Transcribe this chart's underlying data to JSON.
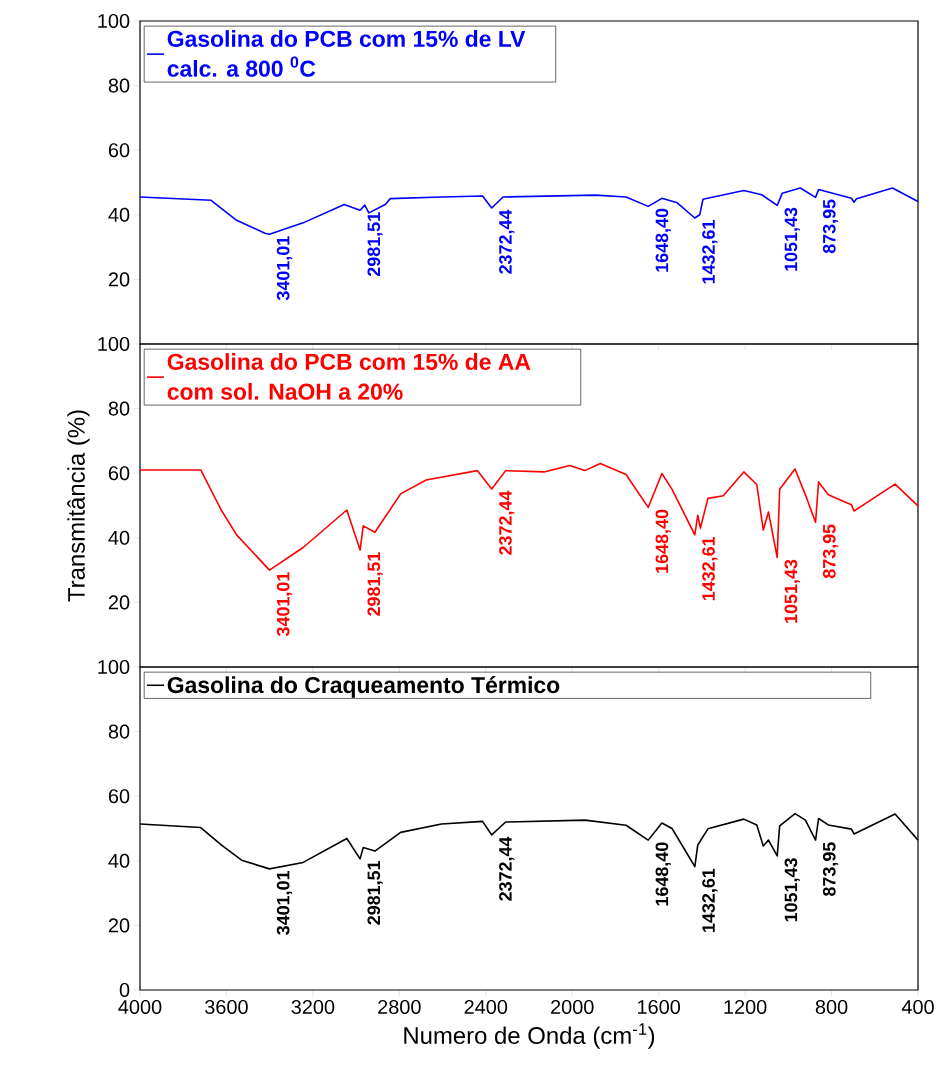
{
  "chart_data": [
    {
      "type": "line",
      "xlim": [
        4000,
        400
      ],
      "xticks": [
        4000,
        3600,
        3200,
        2800,
        2400,
        2000,
        1600,
        1200,
        800,
        400
      ],
      "ylim": [
        0,
        100
      ],
      "yticks": [
        20,
        40,
        60,
        80,
        100
      ],
      "tick_labels": "y",
      "legend": "top left",
      "marker": "none",
      "line_style": "solid",
      "x": [
        4000,
        3671,
        3553,
        3422,
        3401.01,
        3245,
        3055,
        2981.51,
        2960,
        2941,
        2865,
        2842,
        2605,
        2415,
        2372.44,
        2320,
        1893,
        1751,
        1648.4,
        1585,
        1514,
        1432.61,
        1410,
        1395,
        1206,
        1123,
        1051.43,
        1028,
        945,
        873.95,
        860,
        708,
        696,
        684,
        518,
        400
      ],
      "series": [
        {
          "name": "Gasolina do PCB com 15% de LV calc. a 800 $^{0}$C",
          "color": "#0000ff",
          "values": [
            45.5,
            44.5,
            38.3,
            34.3,
            34.0,
            37.5,
            43.2,
            41.4,
            43,
            40.6,
            43.2,
            45,
            45.5,
            45.8,
            42.1,
            45.5,
            46.1,
            45.5,
            42.6,
            45.1,
            43.7,
            39,
            40,
            44.8,
            47.5,
            46.2,
            42.9,
            46.7,
            48.3,
            45.4,
            47.8,
            45.1,
            43.9,
            45,
            48.3,
            44.1
          ]
        }
      ],
      "annotations": [
        {
          "text": "3401,01",
          "x": 3401.01,
          "y": 34.0
        },
        {
          "text": "2981,51",
          "x": 2981.51,
          "y": 41.4
        },
        {
          "text": "2372,44",
          "x": 2372.44,
          "y": 42.1
        },
        {
          "text": "1648,40",
          "x": 1648.4,
          "y": 42.6
        },
        {
          "text": "1432,61",
          "x": 1432.61,
          "y": 39
        },
        {
          "text": "1051,43",
          "x": 1051.43,
          "y": 42.9
        },
        {
          "text": "873,95",
          "x": 873.95,
          "y": 45.4
        }
      ]
    },
    {
      "type": "line",
      "xlim": [
        4000,
        400
      ],
      "xticks": [
        4000,
        3600,
        3200,
        2800,
        2400,
        2000,
        1600,
        1200,
        800,
        400
      ],
      "ylim": [
        0,
        100
      ],
      "yticks": [
        20,
        40,
        60,
        80,
        100
      ],
      "tick_labels": "y",
      "legend": "top left",
      "marker": "none",
      "line_style": "solid",
      "ylabel": "Transmitância (%)",
      "x": [
        4000,
        3719,
        3624,
        3553,
        3401.01,
        3245,
        3043,
        2981.51,
        2967,
        2913,
        2794,
        2676,
        2439,
        2372.44,
        2308,
        2130,
        2012,
        1941,
        1870,
        1751,
        1648.4,
        1585,
        1538,
        1432.61,
        1419,
        1407,
        1372,
        1301,
        1206,
        1146,
        1116,
        1092,
        1051.43,
        1040,
        969,
        921,
        873.95,
        860,
        815,
        708,
        696,
        506,
        400
      ],
      "series": [
        {
          "name": "Gasolina do PCB com 15% de AA com sol. NaOH a 20%",
          "color": "#ff0000",
          "values": [
            61,
            61,
            48.6,
            40.9,
            30,
            37,
            48.6,
            36.2,
            43.7,
            41.7,
            53.6,
            57.9,
            60.8,
            55.1,
            60.8,
            60.4,
            62.4,
            60.8,
            63,
            59.6,
            49.4,
            59.9,
            55,
            40.9,
            47,
            43,
            52.2,
            53,
            60.4,
            56.5,
            42.4,
            48,
            33.9,
            55,
            61.3,
            53.3,
            44.8,
            57.3,
            53.3,
            50.2,
            48.3,
            56.6,
            49.9
          ]
        }
      ],
      "annotations": [
        {
          "text": "3401,01",
          "x": 3401.01,
          "y": 30
        },
        {
          "text": "2981,51",
          "x": 2981.51,
          "y": 36.2
        },
        {
          "text": "2372,44",
          "x": 2372.44,
          "y": 55.1
        },
        {
          "text": "1648,40",
          "x": 1648.4,
          "y": 49.4
        },
        {
          "text": "1432,61",
          "x": 1432.61,
          "y": 40.9
        },
        {
          "text": "1051,43",
          "x": 1051.43,
          "y": 33.9
        },
        {
          "text": "873,95",
          "x": 873.95,
          "y": 44.8
        }
      ]
    },
    {
      "type": "line",
      "xlim": [
        4000,
        400
      ],
      "xticks": [
        4000,
        3600,
        3200,
        2800,
        2400,
        2000,
        1600,
        1200,
        800,
        400
      ],
      "ylim": [
        0,
        100
      ],
      "yticks": [
        0,
        20,
        40,
        60,
        80,
        100
      ],
      "legend": "top left",
      "marker": "none",
      "line_style": "solid",
      "xlabel": "Numero de Onda (cm$^{-1}$)",
      "x": [
        4000,
        3719,
        3624,
        3530,
        3401.01,
        3245,
        3043,
        2981.51,
        2967,
        2913,
        2794,
        2605,
        2415,
        2372.44,
        2308,
        1941,
        1751,
        1648.4,
        1585,
        1538,
        1432.61,
        1419,
        1372,
        1206,
        1146,
        1116,
        1092,
        1051.43,
        1040,
        969,
        921,
        873.95,
        860,
        815,
        708,
        696,
        506,
        400
      ],
      "series": [
        {
          "name": "Gasolina do Craqueamento Térmico",
          "color": "#000000",
          "values": [
            51.4,
            50.3,
            44.9,
            40.2,
            37.5,
            39.5,
            46.9,
            40.6,
            44.1,
            43,
            48.8,
            51.4,
            52.2,
            48,
            52,
            52.6,
            51,
            46.4,
            51.7,
            50,
            38.2,
            44.9,
            49.9,
            52.9,
            51.1,
            44.6,
            46.4,
            41.5,
            50.8,
            54.6,
            52.6,
            46.4,
            53.1,
            51.1,
            49.8,
            48.3,
            54.5,
            46.4
          ]
        }
      ],
      "annotations": [
        {
          "text": "3401,01",
          "x": 3401.01,
          "y": 37.5
        },
        {
          "text": "2981,51",
          "x": 2981.51,
          "y": 40.6
        },
        {
          "text": "2372,44",
          "x": 2372.44,
          "y": 48
        },
        {
          "text": "1648,40",
          "x": 1648.4,
          "y": 46.4
        },
        {
          "text": "1432,61",
          "x": 1432.61,
          "y": 38.2
        },
        {
          "text": "1051,43",
          "x": 1051.43,
          "y": 41.5
        },
        {
          "text": "873,95",
          "x": 873.95,
          "y": 46.4
        }
      ]
    }
  ]
}
